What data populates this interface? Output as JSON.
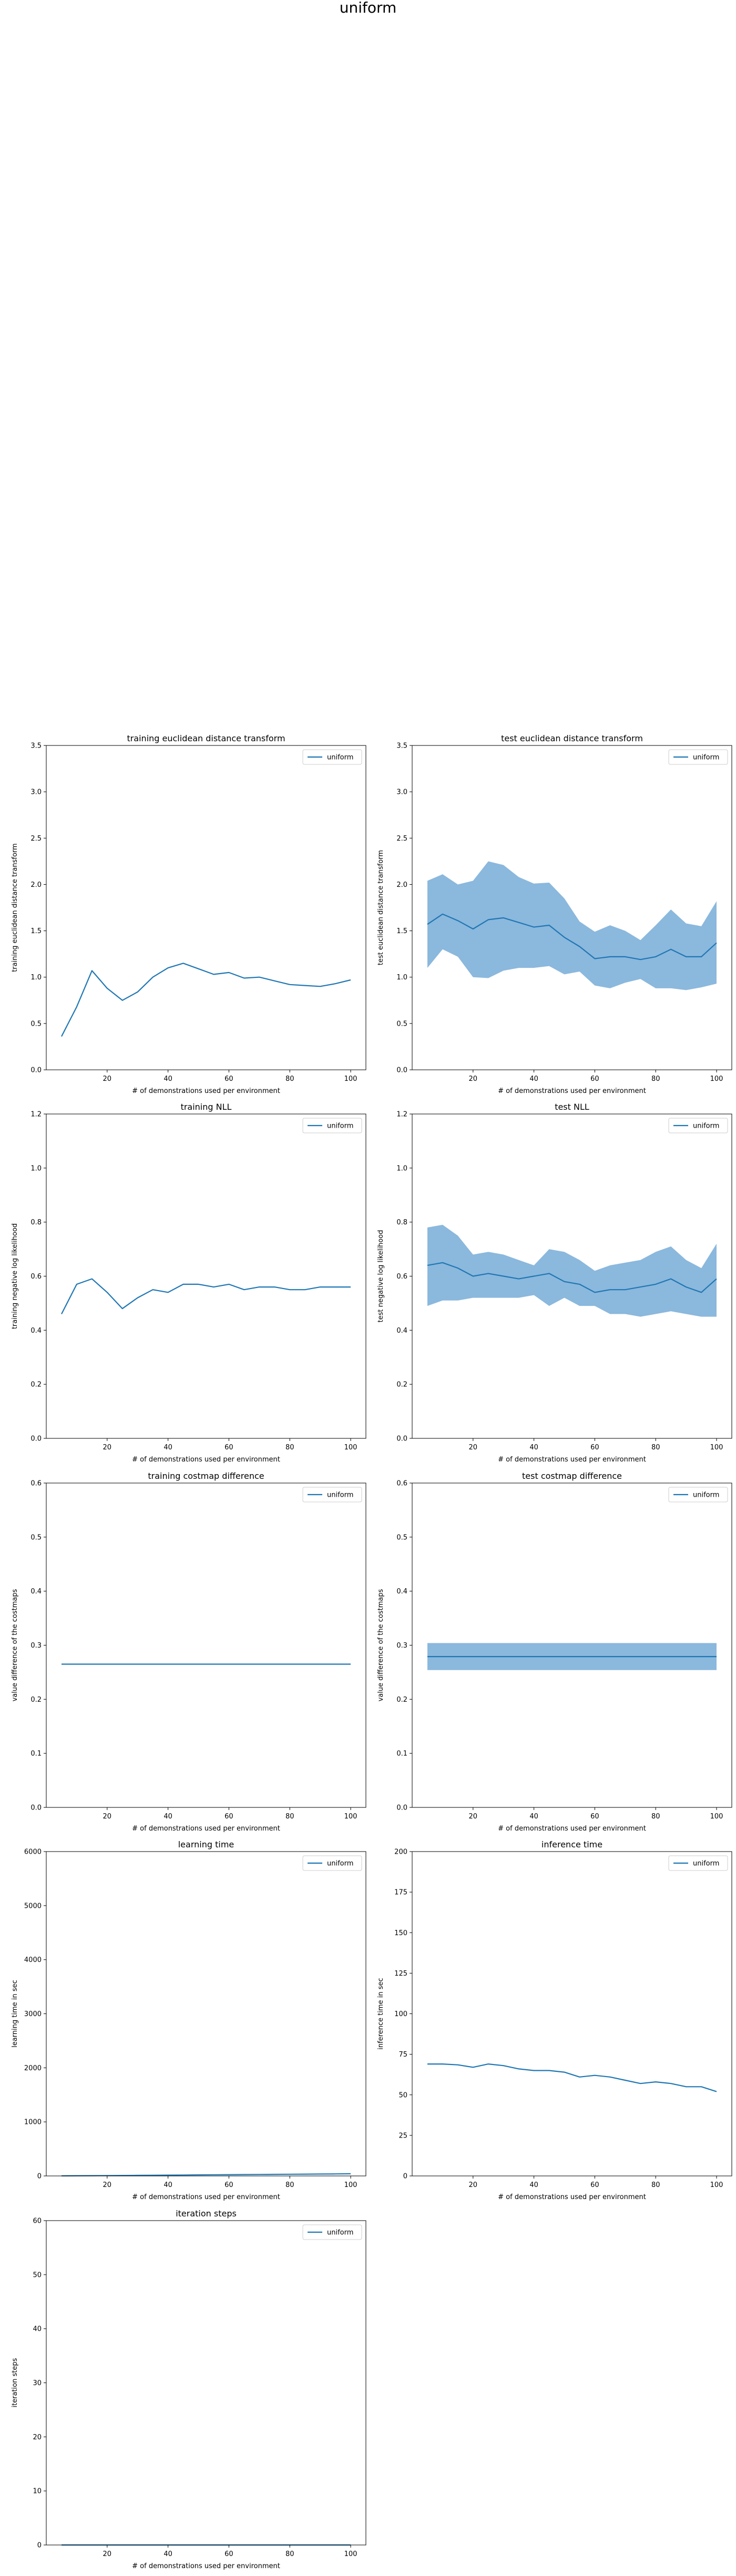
{
  "figure": {
    "title": "uniform"
  },
  "chart_data": [
    {
      "type": "line",
      "title": "training euclidean distance transform",
      "xlabel": "# of demonstrations used per environment",
      "ylabel": "training euclidean distance transform",
      "xlim": [
        0,
        105
      ],
      "ylim": [
        0,
        3.5
      ],
      "xticks": [
        20,
        40,
        60,
        80,
        100
      ],
      "yticks": [
        0.0,
        0.5,
        1.0,
        1.5,
        2.0,
        2.5,
        3.0,
        3.5
      ],
      "ytick_decimals": 1,
      "legend": [
        "uniform"
      ],
      "legend_position": "top-right",
      "grid": false,
      "series": [
        {
          "name": "uniform",
          "color": "#1f77b4",
          "x": [
            5,
            10,
            15,
            20,
            25,
            30,
            35,
            40,
            45,
            50,
            55,
            60,
            65,
            70,
            75,
            80,
            85,
            90,
            95,
            100
          ],
          "y": [
            0.36,
            0.68,
            1.07,
            0.88,
            0.75,
            0.84,
            1.0,
            1.1,
            1.15,
            1.09,
            1.03,
            1.05,
            0.99,
            1.0,
            0.96,
            0.92,
            0.91,
            0.9,
            0.93,
            0.97
          ]
        }
      ]
    },
    {
      "type": "line",
      "title": "test euclidean distance transform",
      "xlabel": "# of demonstrations used per environment",
      "ylabel": "test euclidean distance transform",
      "xlim": [
        0,
        105
      ],
      "ylim": [
        0,
        3.5
      ],
      "xticks": [
        20,
        40,
        60,
        80,
        100
      ],
      "yticks": [
        0.0,
        0.5,
        1.0,
        1.5,
        2.0,
        2.5,
        3.0,
        3.5
      ],
      "ytick_decimals": 1,
      "legend": [
        "uniform"
      ],
      "legend_position": "top-right",
      "grid": false,
      "series": [
        {
          "name": "uniform",
          "color": "#1f77b4",
          "band_color": "#8bb8dd",
          "x": [
            5,
            10,
            15,
            20,
            25,
            30,
            35,
            40,
            45,
            50,
            55,
            60,
            65,
            70,
            75,
            80,
            85,
            90,
            95,
            100
          ],
          "y": [
            1.57,
            1.68,
            1.61,
            1.52,
            1.62,
            1.64,
            1.59,
            1.54,
            1.56,
            1.43,
            1.33,
            1.2,
            1.22,
            1.22,
            1.19,
            1.22,
            1.3,
            1.22,
            1.22,
            1.37
          ],
          "upper": [
            2.04,
            2.11,
            2.0,
            2.04,
            2.25,
            2.21,
            2.08,
            2.01,
            2.02,
            1.85,
            1.6,
            1.49,
            1.56,
            1.5,
            1.4,
            1.56,
            1.73,
            1.58,
            1.55,
            1.82
          ],
          "lower": [
            1.1,
            1.3,
            1.22,
            1.0,
            0.99,
            1.07,
            1.1,
            1.1,
            1.12,
            1.03,
            1.06,
            0.91,
            0.88,
            0.94,
            0.98,
            0.88,
            0.88,
            0.86,
            0.89,
            0.93
          ]
        }
      ]
    },
    {
      "type": "line",
      "title": "training NLL",
      "xlabel": "# of demonstrations used per environment",
      "ylabel": "training negative log likelihood",
      "xlim": [
        0,
        105
      ],
      "ylim": [
        0,
        1.2
      ],
      "xticks": [
        20,
        40,
        60,
        80,
        100
      ],
      "yticks": [
        0.0,
        0.2,
        0.4,
        0.6,
        0.8,
        1.0,
        1.2
      ],
      "ytick_decimals": 1,
      "legend": [
        "uniform"
      ],
      "legend_position": "top-right",
      "grid": false,
      "series": [
        {
          "name": "uniform",
          "color": "#1f77b4",
          "x": [
            5,
            10,
            15,
            20,
            25,
            30,
            35,
            40,
            45,
            50,
            55,
            60,
            65,
            70,
            75,
            80,
            85,
            90,
            95,
            100
          ],
          "y": [
            0.46,
            0.57,
            0.59,
            0.54,
            0.48,
            0.52,
            0.55,
            0.54,
            0.57,
            0.57,
            0.56,
            0.57,
            0.55,
            0.56,
            0.56,
            0.55,
            0.55,
            0.56,
            0.56,
            0.56
          ]
        }
      ]
    },
    {
      "type": "line",
      "title": "test NLL",
      "xlabel": "# of demonstrations used per environment",
      "ylabel": "test negative log likelihood",
      "xlim": [
        0,
        105
      ],
      "ylim": [
        0,
        1.2
      ],
      "xticks": [
        20,
        40,
        60,
        80,
        100
      ],
      "yticks": [
        0.0,
        0.2,
        0.4,
        0.6,
        0.8,
        1.0,
        1.2
      ],
      "ytick_decimals": 1,
      "legend": [
        "uniform"
      ],
      "legend_position": "top-right",
      "grid": false,
      "series": [
        {
          "name": "uniform",
          "color": "#1f77b4",
          "band_color": "#8bb8dd",
          "x": [
            5,
            10,
            15,
            20,
            25,
            30,
            35,
            40,
            45,
            50,
            55,
            60,
            65,
            70,
            75,
            80,
            85,
            90,
            95,
            100
          ],
          "y": [
            0.64,
            0.65,
            0.63,
            0.6,
            0.61,
            0.6,
            0.59,
            0.6,
            0.61,
            0.58,
            0.57,
            0.54,
            0.55,
            0.55,
            0.56,
            0.57,
            0.59,
            0.56,
            0.54,
            0.59
          ],
          "upper": [
            0.78,
            0.79,
            0.75,
            0.68,
            0.69,
            0.68,
            0.66,
            0.64,
            0.7,
            0.69,
            0.66,
            0.62,
            0.64,
            0.65,
            0.66,
            0.69,
            0.71,
            0.66,
            0.63,
            0.72
          ],
          "lower": [
            0.49,
            0.51,
            0.51,
            0.52,
            0.52,
            0.52,
            0.52,
            0.53,
            0.49,
            0.52,
            0.49,
            0.49,
            0.46,
            0.46,
            0.45,
            0.46,
            0.47,
            0.46,
            0.45,
            0.45
          ]
        }
      ]
    },
    {
      "type": "line",
      "title": "training costmap difference",
      "xlabel": "# of demonstrations used per environment",
      "ylabel": "value difference of the costmaps",
      "xlim": [
        0,
        105
      ],
      "ylim": [
        0,
        0.6
      ],
      "xticks": [
        20,
        40,
        60,
        80,
        100
      ],
      "yticks": [
        0.0,
        0.1,
        0.2,
        0.3,
        0.4,
        0.5,
        0.6
      ],
      "ytick_decimals": 1,
      "legend": [
        "uniform"
      ],
      "legend_position": "top-right",
      "grid": false,
      "series": [
        {
          "name": "uniform",
          "color": "#1f77b4",
          "x": [
            5,
            10,
            15,
            20,
            25,
            30,
            35,
            40,
            45,
            50,
            55,
            60,
            65,
            70,
            75,
            80,
            85,
            90,
            95,
            100
          ],
          "y": [
            0.265,
            0.265,
            0.265,
            0.265,
            0.265,
            0.265,
            0.265,
            0.265,
            0.265,
            0.265,
            0.265,
            0.265,
            0.265,
            0.265,
            0.265,
            0.265,
            0.265,
            0.265,
            0.265,
            0.265
          ]
        }
      ]
    },
    {
      "type": "line",
      "title": "test costmap difference",
      "xlabel": "# of demonstrations used per environment",
      "ylabel": "value difference of the costmaps",
      "xlim": [
        0,
        105
      ],
      "ylim": [
        0,
        0.6
      ],
      "xticks": [
        20,
        40,
        60,
        80,
        100
      ],
      "yticks": [
        0.0,
        0.1,
        0.2,
        0.3,
        0.4,
        0.5,
        0.6
      ],
      "ytick_decimals": 1,
      "legend": [
        "uniform"
      ],
      "legend_position": "top-right",
      "grid": false,
      "series": [
        {
          "name": "uniform",
          "color": "#1f77b4",
          "band_color": "#8bb8dd",
          "x": [
            5,
            10,
            15,
            20,
            25,
            30,
            35,
            40,
            45,
            50,
            55,
            60,
            65,
            70,
            75,
            80,
            85,
            90,
            95,
            100
          ],
          "y": [
            0.279,
            0.279,
            0.279,
            0.279,
            0.279,
            0.279,
            0.279,
            0.279,
            0.279,
            0.279,
            0.279,
            0.279,
            0.279,
            0.279,
            0.279,
            0.279,
            0.279,
            0.279,
            0.279,
            0.279
          ],
          "upper": [
            0.304,
            0.304,
            0.304,
            0.304,
            0.304,
            0.304,
            0.304,
            0.304,
            0.304,
            0.304,
            0.304,
            0.304,
            0.304,
            0.304,
            0.304,
            0.304,
            0.304,
            0.304,
            0.304,
            0.304
          ],
          "lower": [
            0.254,
            0.254,
            0.254,
            0.254,
            0.254,
            0.254,
            0.254,
            0.254,
            0.254,
            0.254,
            0.254,
            0.254,
            0.254,
            0.254,
            0.254,
            0.254,
            0.254,
            0.254,
            0.254,
            0.254
          ]
        }
      ]
    },
    {
      "type": "line",
      "title": "learning time",
      "xlabel": "# of demonstrations used per environment",
      "ylabel": "learning time in sec",
      "xlim": [
        0,
        105
      ],
      "ylim": [
        0,
        6000
      ],
      "xticks": [
        20,
        40,
        60,
        80,
        100
      ],
      "yticks": [
        0,
        1000,
        2000,
        3000,
        4000,
        5000,
        6000
      ],
      "ytick_decimals": 0,
      "legend": [
        "uniform"
      ],
      "legend_position": "top-right",
      "grid": false,
      "series": [
        {
          "name": "uniform",
          "color": "#1f77b4",
          "x": [
            5,
            10,
            15,
            20,
            25,
            30,
            35,
            40,
            45,
            50,
            55,
            60,
            65,
            70,
            75,
            80,
            85,
            90,
            95,
            100
          ],
          "y": [
            2,
            4,
            5,
            7,
            9,
            11,
            13,
            15,
            17,
            19,
            21,
            23,
            25,
            27,
            29,
            31,
            33,
            35,
            37,
            40
          ]
        }
      ]
    },
    {
      "type": "line",
      "title": "inference time",
      "xlabel": "# of demonstrations used per environment",
      "ylabel": "inference time in sec",
      "xlim": [
        0,
        105
      ],
      "ylim": [
        0,
        200
      ],
      "xticks": [
        20,
        40,
        60,
        80,
        100
      ],
      "yticks": [
        0,
        25,
        50,
        75,
        100,
        125,
        150,
        175,
        200
      ],
      "ytick_decimals": 0,
      "legend": [
        "uniform"
      ],
      "legend_position": "top-right",
      "grid": false,
      "series": [
        {
          "name": "uniform",
          "color": "#1f77b4",
          "x": [
            5,
            10,
            15,
            20,
            25,
            30,
            35,
            40,
            45,
            50,
            55,
            60,
            65,
            70,
            75,
            80,
            85,
            90,
            95,
            100
          ],
          "y": [
            69,
            69,
            68.5,
            67,
            69,
            68,
            66,
            65,
            65,
            64,
            61,
            62,
            61,
            59,
            57,
            58,
            57,
            55,
            55,
            52
          ]
        }
      ]
    },
    {
      "type": "line",
      "title": "iteration steps",
      "xlabel": "# of demonstrations used per environment",
      "ylabel": "iteration steps",
      "xlim": [
        0,
        105
      ],
      "ylim": [
        0,
        60
      ],
      "xticks": [
        20,
        40,
        60,
        80,
        100
      ],
      "yticks": [
        0,
        10,
        20,
        30,
        40,
        50,
        60
      ],
      "ytick_decimals": 0,
      "legend": [
        "uniform"
      ],
      "legend_position": "top-right",
      "grid": false,
      "series": [
        {
          "name": "uniform",
          "color": "#1f77b4",
          "x": [
            5,
            10,
            15,
            20,
            25,
            30,
            35,
            40,
            45,
            50,
            55,
            60,
            65,
            70,
            75,
            80,
            85,
            90,
            95,
            100
          ],
          "y": [
            0,
            0,
            0,
            0,
            0,
            0,
            0,
            0,
            0,
            0,
            0,
            0,
            0,
            0,
            0,
            0,
            0,
            0,
            0,
            0
          ]
        }
      ]
    }
  ]
}
